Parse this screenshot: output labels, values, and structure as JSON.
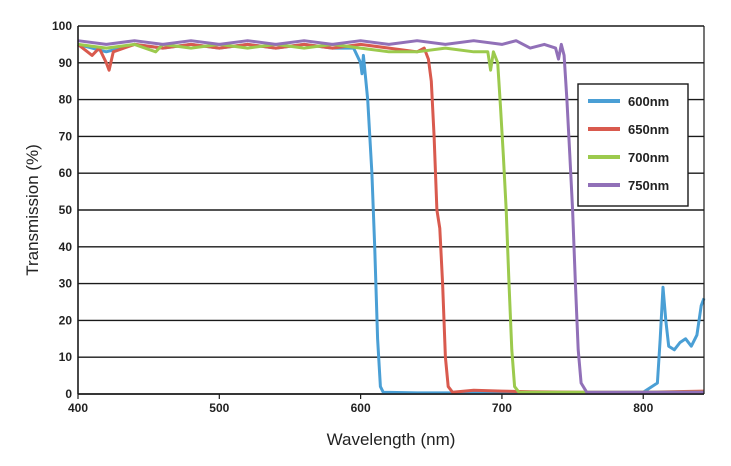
{
  "chart_data": {
    "type": "line",
    "title": "",
    "xlabel": "Wavelength (nm)",
    "ylabel": "Transmission (%)",
    "xlim": [
      400,
      843
    ],
    "ylim": [
      0,
      100
    ],
    "xticks": [
      400,
      500,
      600,
      700,
      800
    ],
    "yticks": [
      0,
      10,
      20,
      30,
      40,
      50,
      60,
      70,
      80,
      90,
      100
    ],
    "grid": "horizontal",
    "legend_position": "right",
    "series": [
      {
        "name": "600nm",
        "color": "#4a9fd5",
        "points": [
          [
            400,
            95
          ],
          [
            420,
            93
          ],
          [
            440,
            95
          ],
          [
            460,
            94
          ],
          [
            480,
            95
          ],
          [
            500,
            94
          ],
          [
            520,
            95
          ],
          [
            540,
            94
          ],
          [
            560,
            95
          ],
          [
            580,
            94
          ],
          [
            595,
            94
          ],
          [
            600,
            90
          ],
          [
            601,
            87
          ],
          [
            602,
            92
          ],
          [
            605,
            80
          ],
          [
            608,
            60
          ],
          [
            610,
            40
          ],
          [
            612,
            15
          ],
          [
            614,
            2
          ],
          [
            616,
            0.5
          ],
          [
            640,
            0.3
          ],
          [
            680,
            0.3
          ],
          [
            720,
            0.3
          ],
          [
            760,
            0.3
          ],
          [
            800,
            0.5
          ],
          [
            810,
            3
          ],
          [
            812,
            15
          ],
          [
            814,
            29
          ],
          [
            816,
            20
          ],
          [
            818,
            13
          ],
          [
            822,
            12
          ],
          [
            826,
            14
          ],
          [
            830,
            15
          ],
          [
            834,
            13
          ],
          [
            838,
            16
          ],
          [
            841,
            24
          ],
          [
            843,
            26
          ]
        ]
      },
      {
        "name": "650nm",
        "color": "#d95a4e",
        "points": [
          [
            400,
            95
          ],
          [
            410,
            92
          ],
          [
            415,
            94
          ],
          [
            420,
            90
          ],
          [
            422,
            88
          ],
          [
            425,
            93
          ],
          [
            440,
            95
          ],
          [
            460,
            94
          ],
          [
            480,
            95
          ],
          [
            500,
            94
          ],
          [
            520,
            95
          ],
          [
            540,
            94
          ],
          [
            560,
            95
          ],
          [
            580,
            94
          ],
          [
            600,
            95
          ],
          [
            620,
            94
          ],
          [
            640,
            93
          ],
          [
            645,
            94
          ],
          [
            648,
            91
          ],
          [
            650,
            85
          ],
          [
            652,
            70
          ],
          [
            654,
            50
          ],
          [
            656,
            45
          ],
          [
            658,
            30
          ],
          [
            660,
            10
          ],
          [
            662,
            2
          ],
          [
            665,
            0.5
          ],
          [
            680,
            1
          ],
          [
            700,
            0.8
          ],
          [
            720,
            0.6
          ],
          [
            760,
            0.5
          ],
          [
            800,
            0.5
          ],
          [
            843,
            0.8
          ]
        ]
      },
      {
        "name": "700nm",
        "color": "#9cca4d",
        "points": [
          [
            400,
            95
          ],
          [
            420,
            94
          ],
          [
            440,
            95
          ],
          [
            455,
            93
          ],
          [
            460,
            95
          ],
          [
            480,
            94
          ],
          [
            500,
            95
          ],
          [
            520,
            94
          ],
          [
            540,
            95
          ],
          [
            560,
            94
          ],
          [
            580,
            95
          ],
          [
            600,
            94
          ],
          [
            620,
            93
          ],
          [
            640,
            93
          ],
          [
            660,
            94
          ],
          [
            680,
            93
          ],
          [
            690,
            93
          ],
          [
            692,
            88
          ],
          [
            694,
            93
          ],
          [
            697,
            90
          ],
          [
            699,
            78
          ],
          [
            701,
            65
          ],
          [
            703,
            50
          ],
          [
            705,
            30
          ],
          [
            707,
            12
          ],
          [
            709,
            2
          ],
          [
            712,
            0.5
          ],
          [
            740,
            0.5
          ],
          [
            780,
            0.5
          ],
          [
            820,
            0.5
          ],
          [
            843,
            0.5
          ]
        ]
      },
      {
        "name": "750nm",
        "color": "#9170b8",
        "points": [
          [
            400,
            96
          ],
          [
            420,
            95
          ],
          [
            440,
            96
          ],
          [
            460,
            95
          ],
          [
            480,
            96
          ],
          [
            500,
            95
          ],
          [
            520,
            96
          ],
          [
            540,
            95
          ],
          [
            560,
            96
          ],
          [
            580,
            95
          ],
          [
            600,
            96
          ],
          [
            620,
            95
          ],
          [
            640,
            96
          ],
          [
            660,
            95
          ],
          [
            680,
            96
          ],
          [
            700,
            95
          ],
          [
            710,
            96
          ],
          [
            720,
            94
          ],
          [
            730,
            95
          ],
          [
            738,
            94
          ],
          [
            740,
            91
          ],
          [
            742,
            95
          ],
          [
            744,
            92
          ],
          [
            746,
            80
          ],
          [
            748,
            65
          ],
          [
            750,
            50
          ],
          [
            752,
            30
          ],
          [
            754,
            12
          ],
          [
            756,
            3
          ],
          [
            760,
            0.5
          ],
          [
            780,
            0.5
          ],
          [
            800,
            0.5
          ],
          [
            843,
            0.5
          ]
        ]
      }
    ]
  }
}
